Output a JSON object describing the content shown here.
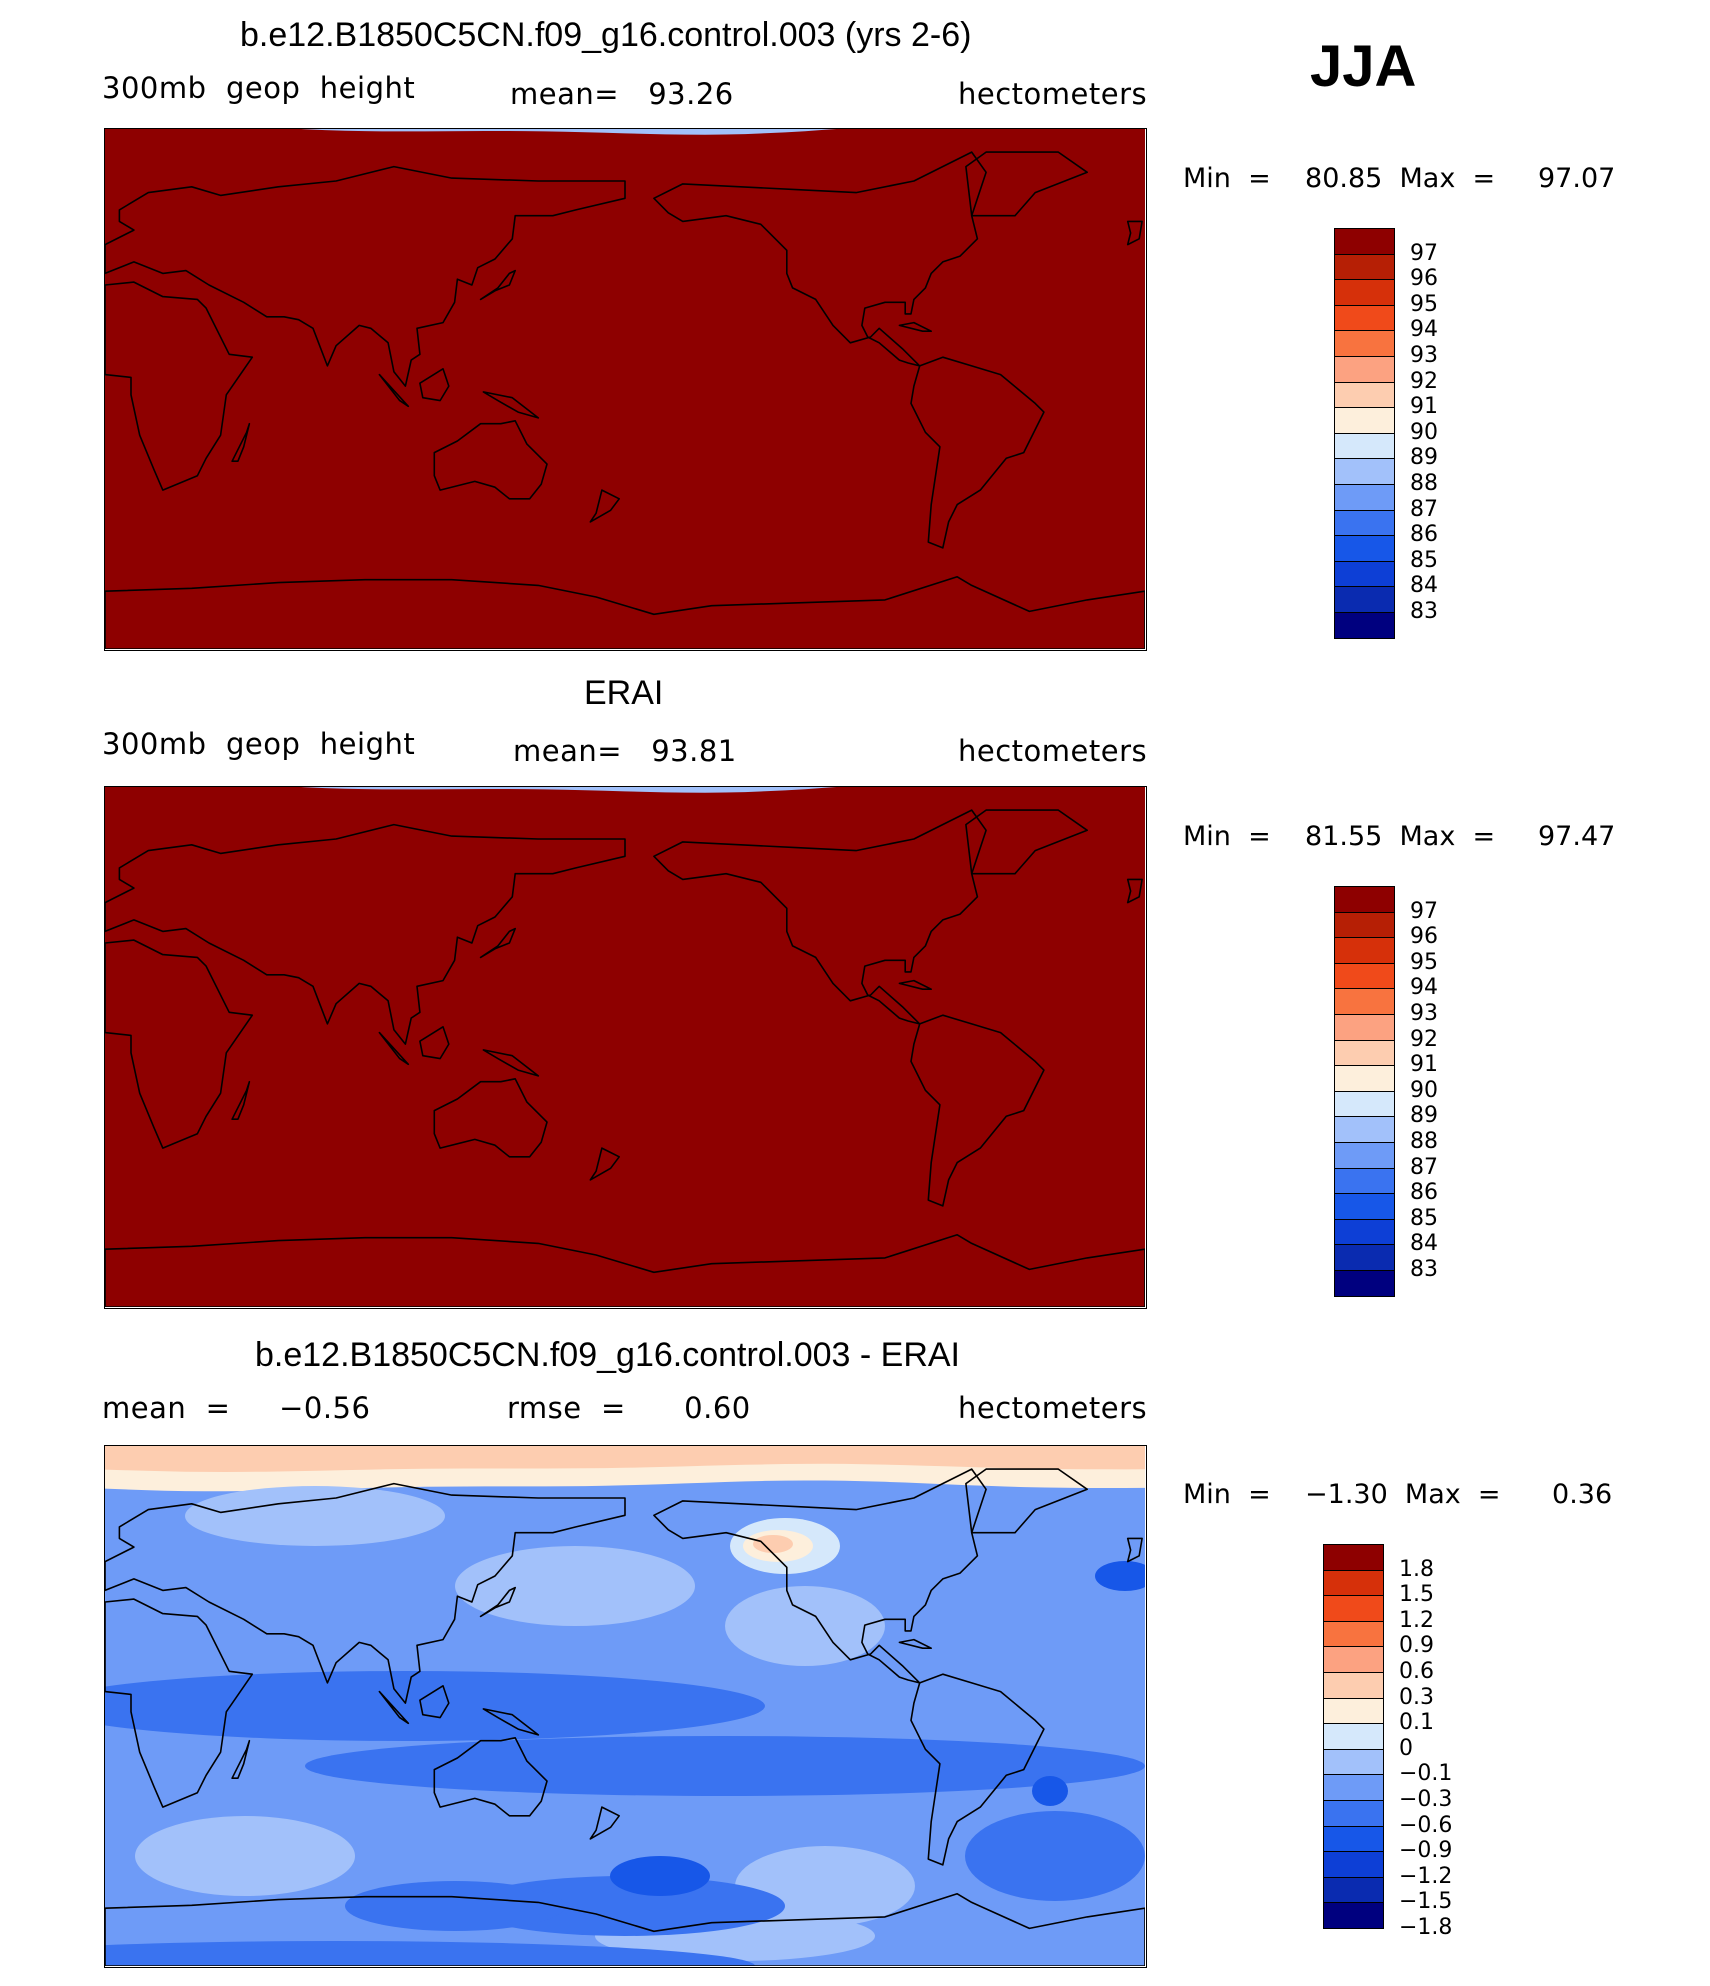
{
  "season": "JJA",
  "colors": {
    "abs_scale": [
      "#00007f",
      "#0a2bb0",
      "#0d3fd6",
      "#1757e8",
      "#3a73f0",
      "#6e9bf7",
      "#a2c1fa",
      "#d5e8fb",
      "#fdefdc",
      "#fdcdb0",
      "#fca281",
      "#f8733f",
      "#f04a1a",
      "#d6300a",
      "#b61f05",
      "#8e0000"
    ],
    "diff_scale": [
      "#00007f",
      "#0a2bb0",
      "#0d3fd6",
      "#1757e8",
      "#3a73f0",
      "#6e9bf7",
      "#a2c1fa",
      "#d5e8fb",
      "#fdefdc",
      "#fdcdb0",
      "#fca281",
      "#f8733f",
      "#f04a1a",
      "#d6300a",
      "#8e0000"
    ]
  },
  "panels": [
    {
      "title": "b.e12.B1850C5CN.f09_g16.control.003 (yrs 2-6)",
      "left_label": "300mb  geop  height",
      "center_label": "mean=   93.26",
      "right_label": "hectometers",
      "minmax": "Min  =    80.85  Max  =     97.07",
      "colorbar_labels": [
        "97",
        "96",
        "95",
        "94",
        "93",
        "92",
        "91",
        "90",
        "89",
        "88",
        "87",
        "86",
        "85",
        "84",
        "83"
      ]
    },
    {
      "title": "ERAI",
      "left_label": "300mb  geop  height",
      "center_label": "mean=   93.81",
      "right_label": "hectometers",
      "minmax": "Min  =    81.55  Max  =     97.47",
      "colorbar_labels": [
        "97",
        "96",
        "95",
        "94",
        "93",
        "92",
        "91",
        "90",
        "89",
        "88",
        "87",
        "86",
        "85",
        "84",
        "83"
      ]
    },
    {
      "title": "b.e12.B1850C5CN.f09_g16.control.003 - ERAI",
      "left_label": "mean  =     −0.56",
      "center_label": "rmse  =      0.60",
      "right_label": "hectometers",
      "minmax": "Min  =    −1.30  Max  =      0.36",
      "colorbar_labels": [
        "1.8",
        "1.5",
        "1.2",
        "0.9",
        "0.6",
        "0.3",
        "0.1",
        "0",
        "−0.1",
        "−0.3",
        "−0.6",
        "−0.9",
        "−1.2",
        "−1.5",
        "−1.8"
      ]
    }
  ],
  "chart_data": [
    {
      "type": "heatmap",
      "title": "b.e12.B1850C5CN.f09_g16.control.003 (yrs 2-6)",
      "variable": "300mb geop height",
      "units": "hectometers",
      "mean": 93.26,
      "min": 80.85,
      "max": 97.07,
      "levels": [
        83,
        84,
        85,
        86,
        87,
        88,
        89,
        90,
        91,
        92,
        93,
        94,
        95,
        96,
        97
      ]
    },
    {
      "type": "heatmap",
      "title": "ERAI",
      "variable": "300mb geop height",
      "units": "hectometers",
      "mean": 93.81,
      "min": 81.55,
      "max": 97.47,
      "levels": [
        83,
        84,
        85,
        86,
        87,
        88,
        89,
        90,
        91,
        92,
        93,
        94,
        95,
        96,
        97
      ]
    },
    {
      "type": "heatmap",
      "title": "b.e12.B1850C5CN.f09_g16.control.003 - ERAI",
      "units": "hectometers",
      "mean": -0.56,
      "rmse": 0.6,
      "min": -1.3,
      "max": 0.36,
      "levels": [
        -1.8,
        -1.5,
        -1.2,
        -0.9,
        -0.6,
        -0.3,
        -0.1,
        0,
        0.1,
        0.3,
        0.6,
        0.9,
        1.2,
        1.5,
        1.8
      ]
    }
  ]
}
